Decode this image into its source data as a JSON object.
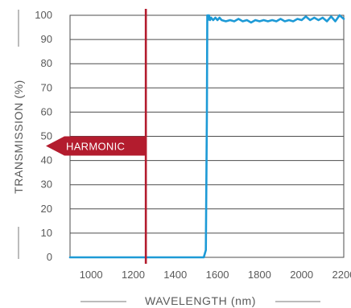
{
  "chart_data": {
    "type": "line",
    "title": "",
    "xlabel": "WAVELENGTH (nm)",
    "ylabel": "TRANSMISSION (%)",
    "xlim": [
      900,
      2200
    ],
    "ylim": [
      0,
      100
    ],
    "x_ticks": [
      1000,
      1200,
      1400,
      1600,
      1800,
      2000,
      2200
    ],
    "y_ticks": [
      0,
      10,
      20,
      30,
      40,
      50,
      60,
      70,
      80,
      90,
      100
    ],
    "grid": "horizontal",
    "series": [
      {
        "color": "#1d9ad6",
        "x": [
          900,
          1000,
          1200,
          1400,
          1535,
          1545,
          1550,
          1552,
          1555,
          1560,
          1565,
          1570,
          1580,
          1590,
          1600,
          1610,
          1620,
          1640,
          1660,
          1680,
          1700,
          1720,
          1740,
          1760,
          1780,
          1800,
          1820,
          1840,
          1860,
          1880,
          1900,
          1920,
          1940,
          1960,
          1980,
          2000,
          2020,
          2040,
          2060,
          2080,
          2100,
          2120,
          2140,
          2160,
          2180,
          2200
        ],
        "y": [
          0,
          0,
          0,
          0,
          0,
          3,
          60,
          100,
          98,
          100,
          98,
          99,
          98,
          99,
          98,
          99,
          98,
          97.5,
          98,
          97.5,
          98.5,
          97.5,
          98,
          97,
          98,
          97.5,
          98,
          97.5,
          98,
          97.5,
          98.5,
          97.5,
          98,
          97.5,
          98.5,
          98,
          99.5,
          98,
          99,
          98,
          99,
          97.5,
          99.5,
          97.5,
          100,
          98.5
        ]
      }
    ],
    "annotations": [
      {
        "type": "vertical-line",
        "x": 1260,
        "color": "#b31c2e"
      },
      {
        "type": "arrow-label",
        "text": "HARMONIC",
        "y": 46,
        "direction": "left",
        "color": "#b31c2e"
      }
    ]
  }
}
